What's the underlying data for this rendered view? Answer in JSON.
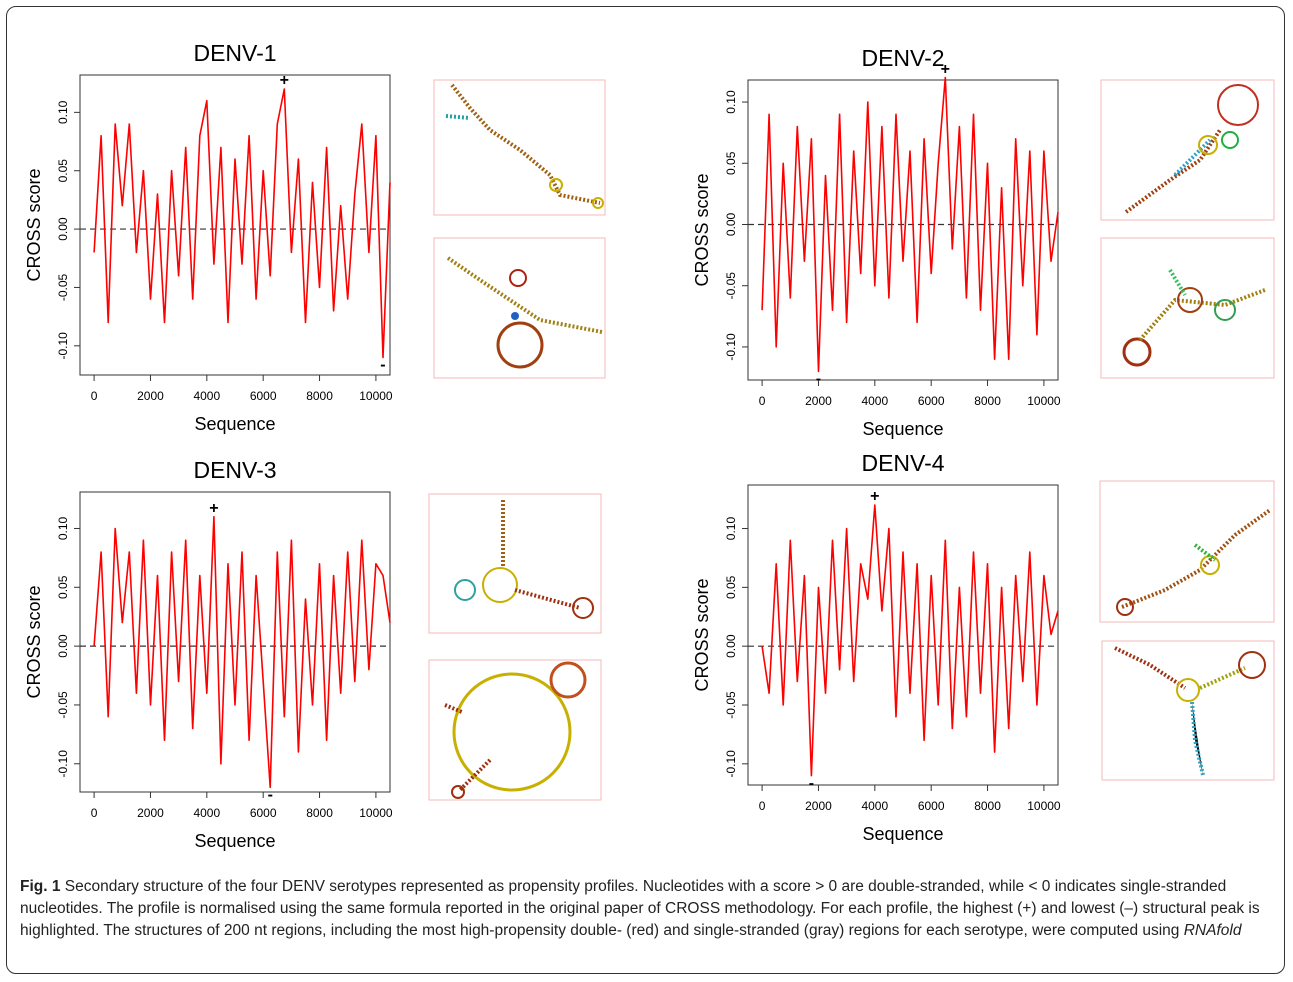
{
  "chart_data": [
    {
      "type": "line",
      "title": "DENV-1",
      "xlabel": "Sequence",
      "ylabel": "CROSS score",
      "color": "#ff0000",
      "x": [
        0,
        250,
        500,
        750,
        1000,
        1250,
        1500,
        1750,
        2000,
        2250,
        2500,
        2750,
        3000,
        3250,
        3500,
        3750,
        4000,
        4250,
        4500,
        4750,
        5000,
        5250,
        5500,
        5750,
        6000,
        6250,
        6500,
        6750,
        7000,
        7250,
        7500,
        7750,
        8000,
        8250,
        8500,
        8750,
        9000,
        9250,
        9500,
        9750,
        10000,
        10250,
        10500
      ],
      "values": [
        -0.02,
        0.08,
        -0.08,
        0.09,
        0.02,
        0.09,
        -0.02,
        0.05,
        -0.06,
        0.03,
        -0.08,
        0.05,
        -0.04,
        0.07,
        -0.06,
        0.08,
        0.11,
        -0.03,
        0.07,
        -0.08,
        0.06,
        -0.03,
        0.08,
        -0.06,
        0.05,
        -0.04,
        0.09,
        0.12,
        -0.02,
        0.06,
        -0.08,
        0.04,
        -0.05,
        0.07,
        -0.07,
        0.02,
        -0.06,
        0.03,
        0.09,
        -0.02,
        0.08,
        -0.11,
        0.04
      ],
      "xlim": [
        -500,
        10500
      ],
      "ylim": [
        -0.125,
        0.132
      ],
      "xticks": [
        0,
        2000,
        4000,
        6000,
        8000,
        10000
      ],
      "yticks": [
        {
          "value": -0.1,
          "label": "-0.10"
        },
        {
          "value": -0.05,
          "label": "-0.05"
        },
        {
          "value": 0,
          "label": "0.00"
        },
        {
          "value": 0.05,
          "label": "0.05"
        },
        {
          "value": 0.1,
          "label": "0.10"
        }
      ],
      "reference_line": 0,
      "annotations": [
        {
          "text": "+",
          "x": 6750,
          "y": 0.12
        },
        {
          "text": "-",
          "x": 10250,
          "y": -0.11
        }
      ]
    },
    {
      "type": "line",
      "title": "DENV-2",
      "xlabel": "Sequence",
      "ylabel": "CROSS score",
      "color": "#ff0000",
      "x": [
        0,
        250,
        500,
        750,
        1000,
        1250,
        1500,
        1750,
        2000,
        2250,
        2500,
        2750,
        3000,
        3250,
        3500,
        3750,
        4000,
        4250,
        4500,
        4750,
        5000,
        5250,
        5500,
        5750,
        6000,
        6250,
        6500,
        6750,
        7000,
        7250,
        7500,
        7750,
        8000,
        8250,
        8500,
        8750,
        9000,
        9250,
        9500,
        9750,
        10000,
        10250,
        10500
      ],
      "values": [
        -0.07,
        0.09,
        -0.1,
        0.05,
        -0.06,
        0.08,
        -0.03,
        0.07,
        -0.12,
        0.04,
        -0.07,
        0.09,
        -0.08,
        0.06,
        -0.04,
        0.1,
        -0.05,
        0.08,
        -0.06,
        0.09,
        -0.03,
        0.06,
        -0.08,
        0.07,
        -0.04,
        0.05,
        0.12,
        -0.02,
        0.08,
        -0.06,
        0.09,
        -0.07,
        0.05,
        -0.11,
        0.03,
        -0.11,
        0.07,
        -0.05,
        0.06,
        -0.09,
        0.06,
        -0.03,
        0.01
      ],
      "xlim": [
        -500,
        10500
      ],
      "ylim": [
        -0.127,
        0.118
      ],
      "xticks": [
        0,
        2000,
        4000,
        6000,
        8000,
        10000
      ],
      "yticks": [
        {
          "value": -0.1,
          "label": "-0.10"
        },
        {
          "value": -0.05,
          "label": "-0.05"
        },
        {
          "value": 0,
          "label": "0.00"
        },
        {
          "value": 0.05,
          "label": "0.05"
        },
        {
          "value": 0.1,
          "label": "0.10"
        }
      ],
      "reference_line": 0,
      "annotations": [
        {
          "text": "+",
          "x": 6500,
          "y": 0.12
        },
        {
          "text": "-",
          "x": 2000,
          "y": -0.12
        }
      ]
    },
    {
      "type": "line",
      "title": "DENV-3",
      "xlabel": "Sequence",
      "ylabel": "CROSS score",
      "color": "#ff0000",
      "x": [
        0,
        250,
        500,
        750,
        1000,
        1250,
        1500,
        1750,
        2000,
        2250,
        2500,
        2750,
        3000,
        3250,
        3500,
        3750,
        4000,
        4250,
        4500,
        4750,
        5000,
        5250,
        5500,
        5750,
        6000,
        6250,
        6500,
        6750,
        7000,
        7250,
        7500,
        7750,
        8000,
        8250,
        8500,
        8750,
        9000,
        9250,
        9500,
        9750,
        10000,
        10250,
        10500
      ],
      "values": [
        0,
        0.08,
        -0.06,
        0.1,
        0.02,
        0.08,
        -0.04,
        0.09,
        -0.05,
        0.06,
        -0.08,
        0.08,
        -0.03,
        0.09,
        -0.07,
        0.06,
        -0.04,
        0.11,
        -0.1,
        0.07,
        -0.05,
        0.08,
        -0.08,
        0.06,
        -0.03,
        -0.12,
        0.08,
        -0.06,
        0.09,
        -0.09,
        0.04,
        -0.05,
        0.07,
        -0.08,
        0.06,
        -0.04,
        0.08,
        -0.03,
        0.09,
        -0.02,
        0.07,
        0.06,
        0.02
      ],
      "xlim": [
        -500,
        10500
      ],
      "ylim": [
        -0.124,
        0.131
      ],
      "xticks": [
        0,
        2000,
        4000,
        6000,
        8000,
        10000
      ],
      "yticks": [
        {
          "value": -0.1,
          "label": "-0.10"
        },
        {
          "value": -0.05,
          "label": "-0.05"
        },
        {
          "value": 0,
          "label": "0.00"
        },
        {
          "value": 0.05,
          "label": "0.05"
        },
        {
          "value": 0.1,
          "label": "0.10"
        }
      ],
      "reference_line": 0,
      "annotations": [
        {
          "text": "+",
          "x": 4250,
          "y": 0.11
        },
        {
          "text": "-",
          "x": 6250,
          "y": -0.12
        }
      ]
    },
    {
      "type": "line",
      "title": "DENV-4",
      "xlabel": "Sequence",
      "ylabel": "CROSS score",
      "color": "#ff0000",
      "x": [
        0,
        250,
        500,
        750,
        1000,
        1250,
        1500,
        1750,
        2000,
        2250,
        2500,
        2750,
        3000,
        3250,
        3500,
        3750,
        4000,
        4250,
        4500,
        4750,
        5000,
        5250,
        5500,
        5750,
        6000,
        6250,
        6500,
        6750,
        7000,
        7250,
        7500,
        7750,
        8000,
        8250,
        8500,
        8750,
        9000,
        9250,
        9500,
        9750,
        10000,
        10250,
        10500
      ],
      "values": [
        0,
        -0.04,
        0.07,
        -0.05,
        0.09,
        -0.03,
        0.06,
        -0.11,
        0.05,
        -0.04,
        0.09,
        -0.02,
        0.1,
        -0.03,
        0.07,
        0.04,
        0.12,
        0.03,
        0.1,
        -0.06,
        0.08,
        -0.04,
        0.07,
        -0.08,
        0.06,
        -0.05,
        0.09,
        -0.07,
        0.05,
        -0.06,
        0.08,
        -0.04,
        0.07,
        -0.09,
        0.05,
        -0.07,
        0.06,
        -0.03,
        0.08,
        -0.05,
        0.06,
        0.01,
        0.03
      ],
      "xlim": [
        -500,
        10500
      ],
      "ylim": [
        -0.118,
        0.137
      ],
      "xticks": [
        0,
        2000,
        4000,
        6000,
        8000,
        10000
      ],
      "yticks": [
        {
          "value": -0.1,
          "label": "-0.10"
        },
        {
          "value": -0.05,
          "label": "-0.05"
        },
        {
          "value": 0,
          "label": "0.00"
        },
        {
          "value": 0.05,
          "label": "0.05"
        },
        {
          "value": 0.1,
          "label": "0.10"
        }
      ],
      "reference_line": 0,
      "annotations": [
        {
          "text": "+",
          "x": 4000,
          "y": 0.12
        },
        {
          "text": "-",
          "x": 1750,
          "y": -0.11
        }
      ]
    }
  ],
  "caption": {
    "label": "Fig. 1",
    "text": "Secondary structure of the four DENV serotypes represented as propensity profiles. Nucleotides with a score > 0 are double-stranded, while < 0 indicates single-stranded nucleotides. The profile is normalised using the same formula reported in the original paper of CROSS methodology. For each profile, the highest (+) and lowest (–) structural peak is highlighted. The structures of 200 nt regions, including the most high-propensity double- (red) and single-stranded (gray) regions for each serotype, were computed using",
    "emphasis": "RNAfold"
  }
}
